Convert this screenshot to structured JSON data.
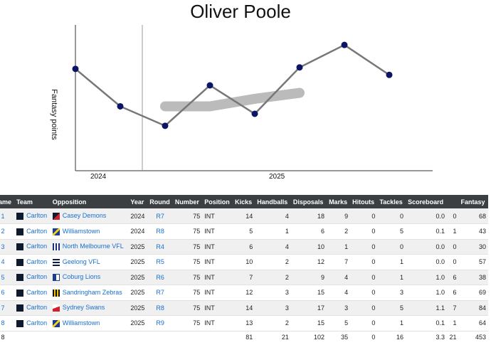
{
  "title": "Oliver Poole",
  "chart_data": {
    "type": "line",
    "ylabel": "Fantasy points",
    "xlabel": "",
    "x_tick_labels": [
      "2024",
      "2025"
    ],
    "x": [
      "2024 R7",
      "2024 R8",
      "2025 R4",
      "2025 R5",
      "2025 R6",
      "2025 R7",
      "2025 R8",
      "2025 R9"
    ],
    "series": [
      {
        "values": [
          68,
          43,
          30,
          57,
          38,
          69,
          84,
          64
        ]
      }
    ],
    "trend_band": [
      [
        2,
        43
      ],
      [
        3,
        43
      ],
      [
        4,
        48
      ],
      [
        5,
        52
      ]
    ],
    "ylim": [
      0,
      95
    ],
    "grid": false,
    "colors": {
      "line": "#777777",
      "points": "#0b1465",
      "trend": "#bbbbbb"
    }
  },
  "table": {
    "columns": [
      "Game",
      "Team",
      "Opposition",
      "Year",
      "Round",
      "Number",
      "Position",
      "Kicks",
      "Handballs",
      "Disposals",
      "Marks",
      "Hitouts",
      "Tackles",
      "Scoreboard",
      "",
      "Fantasy"
    ],
    "rows": [
      [
        "1",
        "Carlton",
        "Casey Demons",
        "2024",
        "R7",
        "75",
        "INT",
        "14",
        "4",
        "18",
        "9",
        "0",
        "0",
        "0.0",
        "0",
        "68"
      ],
      [
        "2",
        "Carlton",
        "Williamstown",
        "2024",
        "R8",
        "75",
        "INT",
        "5",
        "1",
        "6",
        "2",
        "0",
        "5",
        "0.1",
        "1",
        "43"
      ],
      [
        "3",
        "Carlton",
        "North Melbourne VFL",
        "2025",
        "R4",
        "75",
        "INT",
        "6",
        "4",
        "10",
        "1",
        "0",
        "0",
        "0.0",
        "0",
        "30"
      ],
      [
        "4",
        "Carlton",
        "Geelong VFL",
        "2025",
        "R5",
        "75",
        "INT",
        "10",
        "2",
        "12",
        "7",
        "0",
        "1",
        "0.0",
        "0",
        "57"
      ],
      [
        "5",
        "Carlton",
        "Coburg Lions",
        "2025",
        "R6",
        "75",
        "INT",
        "7",
        "2",
        "9",
        "4",
        "0",
        "1",
        "1.0",
        "6",
        "38"
      ],
      [
        "6",
        "Carlton",
        "Sandringham Zebras",
        "2025",
        "R7",
        "75",
        "INT",
        "12",
        "3",
        "15",
        "4",
        "0",
        "3",
        "1.0",
        "6",
        "69"
      ],
      [
        "7",
        "Carlton",
        "Sydney Swans",
        "2025",
        "R8",
        "75",
        "INT",
        "14",
        "3",
        "17",
        "3",
        "0",
        "5",
        "1.1",
        "7",
        "84"
      ],
      [
        "8",
        "Carlton",
        "Williamstown",
        "2025",
        "R9",
        "75",
        "INT",
        "13",
        "2",
        "15",
        "5",
        "0",
        "1",
        "0.1",
        "1",
        "64"
      ]
    ],
    "totals": [
      "8",
      "",
      "",
      "",
      "",
      "",
      "",
      "81",
      "21",
      "102",
      "35",
      "0",
      "16",
      "3.3",
      "21",
      "453"
    ],
    "logos": {
      "Carlton": "navy-square-icon",
      "Casey Demons": "red-navy-icon",
      "Williamstown": "blue-yellow-diagonal-icon",
      "North Melbourne VFL": "blue-white-stripes-icon",
      "Geelong VFL": "navy-hoops-icon",
      "Coburg Lions": "blue-white-icon",
      "Sandringham Zebras": "black-yellow-stripes-icon",
      "Sydney Swans": "red-white-icon"
    }
  }
}
